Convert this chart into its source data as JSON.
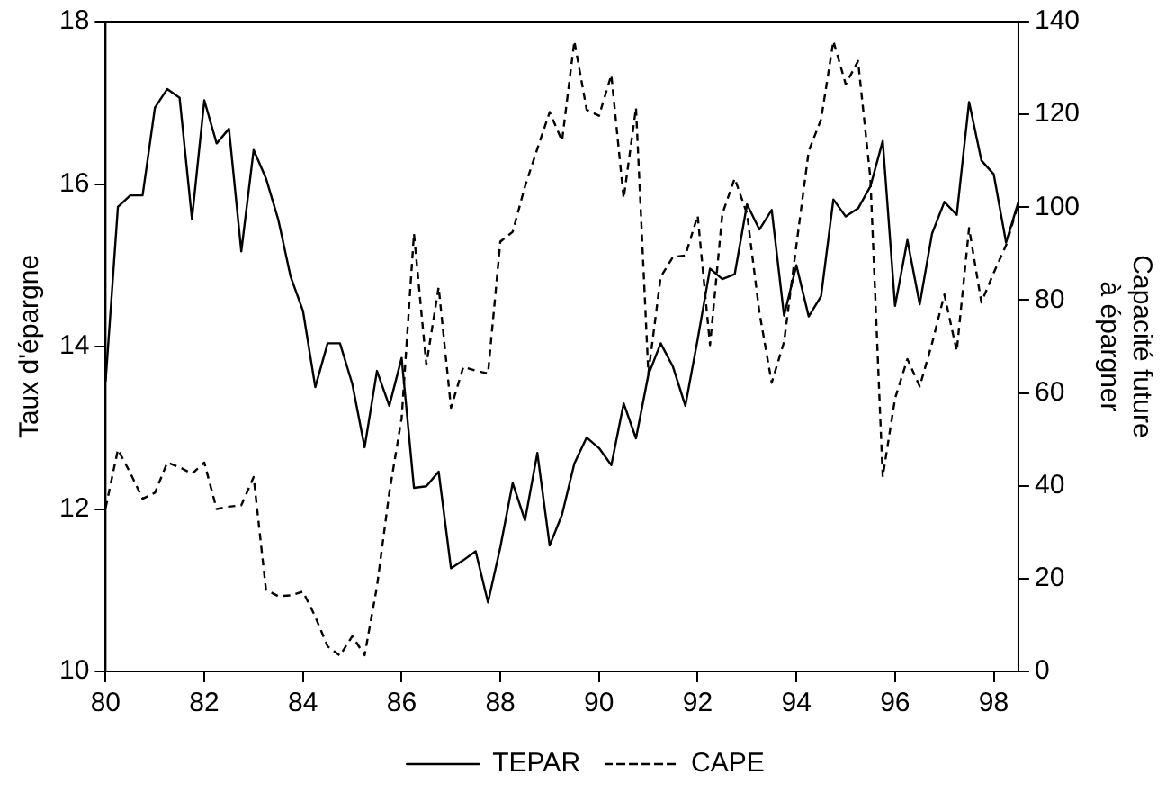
{
  "chart_data": {
    "type": "line",
    "ylabel": "Taux d'épargne",
    "y2label": "Capacité future\nà épargner",
    "x": [
      80,
      80.25,
      80.5,
      80.75,
      81,
      81.25,
      81.5,
      81.75,
      82,
      82.25,
      82.5,
      82.75,
      83,
      83.25,
      83.5,
      83.75,
      84,
      84.25,
      84.5,
      84.75,
      85,
      85.25,
      85.5,
      85.75,
      86,
      86.25,
      86.5,
      86.75,
      87,
      87.25,
      87.5,
      87.75,
      88,
      88.25,
      88.5,
      88.75,
      89,
      89.25,
      89.5,
      89.75,
      90,
      90.25,
      90.5,
      90.75,
      91,
      91.25,
      91.5,
      91.75,
      92,
      92.25,
      92.5,
      92.75,
      93,
      93.25,
      93.5,
      93.75,
      94,
      94.25,
      94.5,
      94.75,
      95,
      95.25,
      95.5,
      95.75,
      96,
      96.25,
      96.5,
      96.75,
      97,
      97.25,
      97.5,
      97.75,
      98,
      98.25,
      98.5
    ],
    "series": [
      {
        "name": "TEPAR",
        "color": "#000000",
        "line_style": "solid",
        "values": [
          13.57,
          15.72,
          15.86,
          15.86,
          16.94,
          17.17,
          17.06,
          15.57,
          17.03,
          16.5,
          16.68,
          15.17,
          16.42,
          16.07,
          15.56,
          14.86,
          14.44,
          13.5,
          14.04,
          14.04,
          13.54,
          12.76,
          13.7,
          13.27,
          13.86,
          12.26,
          12.28,
          12.46,
          11.27,
          11.37,
          11.48,
          10.85,
          11.53,
          12.32,
          11.86,
          12.69,
          11.55,
          11.93,
          12.56,
          12.88,
          12.75,
          12.54,
          13.3,
          12.87,
          13.65,
          14.04,
          13.75,
          13.27,
          14.09,
          14.96,
          14.83,
          14.89,
          15.75,
          15.44,
          15.68,
          14.38,
          15.0,
          14.37,
          14.62,
          15.81,
          15.6,
          15.7,
          15.97,
          16.53,
          14.5,
          15.31,
          14.52,
          15.39,
          15.78,
          15.62,
          17.01,
          16.29,
          16.12,
          15.28,
          15.78
        ]
      },
      {
        "name": "CAPE",
        "color": "#000000",
        "line_style": "dashed",
        "axis": "y2",
        "values": [
          35.2,
          47.8,
          42.8,
          37.2,
          38.5,
          45,
          44,
          42.6,
          45,
          35,
          35.5,
          35.8,
          41.9,
          17.6,
          16.2,
          16.4,
          17.2,
          11.8,
          5.4,
          3.4,
          7.6,
          3.5,
          18.3,
          38.5,
          54.6,
          94.3,
          66.1,
          82.8,
          56.8,
          65.6,
          64.8,
          64.2,
          92.6,
          94.7,
          104.5,
          112.6,
          120.5,
          114.3,
          135.8,
          121,
          119.7,
          128.5,
          101.9,
          121.4,
          64.2,
          85,
          89.3,
          89.6,
          98.2,
          70.3,
          98.6,
          106.2,
          98.6,
          77.4,
          62.2,
          71,
          91.8,
          112.1,
          118.9,
          135.8,
          126.5,
          131.5,
          106.2,
          41.9,
          58.8,
          67.3,
          61.4,
          70.7,
          81.2,
          69,
          95.5,
          79.5,
          85.9,
          91.8,
          100.8
        ]
      }
    ],
    "xlim": [
      80,
      98.5
    ],
    "xticks": [
      80,
      82,
      84,
      86,
      88,
      90,
      92,
      94,
      96,
      98
    ],
    "ylim": [
      10,
      18
    ],
    "yticks": [
      10,
      12,
      14,
      16,
      18
    ],
    "y2lim": [
      0,
      140
    ],
    "y2ticks": [
      0,
      20,
      40,
      60,
      80,
      100,
      120,
      140
    ],
    "grid": false,
    "legend": "bottom",
    "marker": "none"
  }
}
